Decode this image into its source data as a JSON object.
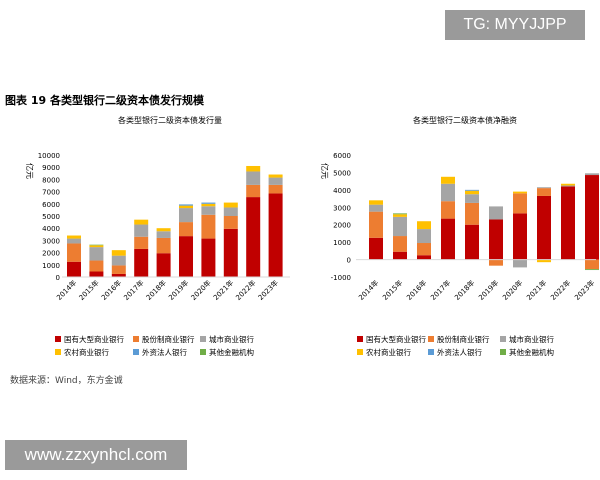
{
  "watermark": "TG: MYYJJPP",
  "site": "www.zzxynhcl.com",
  "figure_title": "图表 19 各类型银行二级资本债发行规模",
  "source": "数据来源：Wind，东方金诚",
  "chart_data": [
    {
      "type": "bar",
      "stacked": true,
      "title": "各类型银行二级资本债发行量",
      "ylabel": "亿元",
      "ylim": [
        0,
        10000
      ],
      "yticks": [
        "0",
        "1000",
        "2000",
        "3000",
        "4000",
        "5000",
        "6000",
        "7000",
        "8000",
        "9000",
        "10000"
      ],
      "categories": [
        "2014年",
        "2015年",
        "2016年",
        "2017年",
        "2018年",
        "2019年",
        "2020年",
        "2021年",
        "2022年",
        "2023年"
      ],
      "series": [
        {
          "name": "国有大型商业银行",
          "color": "#C00000",
          "values": [
            1250,
            450,
            250,
            2300,
            1950,
            3350,
            3150,
            3950,
            6550,
            6850
          ]
        },
        {
          "name": "股份制商业银行",
          "color": "#ED7D31",
          "values": [
            1500,
            900,
            700,
            1000,
            1250,
            1150,
            1950,
            1050,
            1000,
            700
          ]
        },
        {
          "name": "城市商业银行",
          "color": "#A5A5A5",
          "values": [
            400,
            1100,
            800,
            1000,
            550,
            1150,
            700,
            700,
            1100,
            600
          ]
        },
        {
          "name": "农村商业银行",
          "color": "#FFC000",
          "values": [
            250,
            150,
            450,
            400,
            250,
            200,
            200,
            400,
            450,
            250
          ]
        },
        {
          "name": "外资法人银行",
          "color": "#5B9BD5",
          "values": [
            0,
            0,
            0,
            0,
            0,
            100,
            100,
            0,
            0,
            0
          ]
        },
        {
          "name": "其他金融机构",
          "color": "#70AD47",
          "values": [
            0,
            50,
            0,
            0,
            0,
            0,
            0,
            0,
            0,
            0
          ]
        }
      ],
      "legend": "bottom"
    },
    {
      "type": "bar",
      "stacked": true,
      "title": "各类型银行二级资本债净融资",
      "ylabel": "亿元",
      "ylim": [
        -1000,
        6000
      ],
      "yticks": [
        "-1000",
        "0",
        "1000",
        "2000",
        "3000",
        "4000",
        "5000",
        "6000"
      ],
      "categories": [
        "2014年",
        "2015年",
        "2016年",
        "2017年",
        "2018年",
        "2019年",
        "2020年",
        "2021年",
        "2022年",
        "2023年"
      ],
      "series": [
        {
          "name": "国有大型商业银行",
          "color": "#C00000",
          "values": [
            1250,
            450,
            250,
            2350,
            2000,
            2300,
            2650,
            3650,
            4200,
            4850
          ]
        },
        {
          "name": "股份制商业银行",
          "color": "#ED7D31",
          "values": [
            1500,
            900,
            700,
            1000,
            1250,
            -350,
            1150,
            450,
            0,
            -550
          ]
        },
        {
          "name": "城市商业银行",
          "color": "#A5A5A5",
          "values": [
            400,
            1100,
            800,
            1000,
            500,
            750,
            -450,
            50,
            50,
            100
          ]
        },
        {
          "name": "农村商业银行",
          "color": "#FFC000",
          "values": [
            250,
            150,
            450,
            400,
            200,
            0,
            100,
            -150,
            100,
            0
          ]
        },
        {
          "name": "外资法人银行",
          "color": "#5B9BD5",
          "values": [
            0,
            0,
            0,
            0,
            50,
            0,
            0,
            0,
            0,
            0
          ]
        },
        {
          "name": "其他金融机构",
          "color": "#70AD47",
          "values": [
            0,
            50,
            0,
            0,
            0,
            0,
            0,
            0,
            0,
            -50
          ]
        }
      ],
      "legend": "bottom"
    }
  ]
}
